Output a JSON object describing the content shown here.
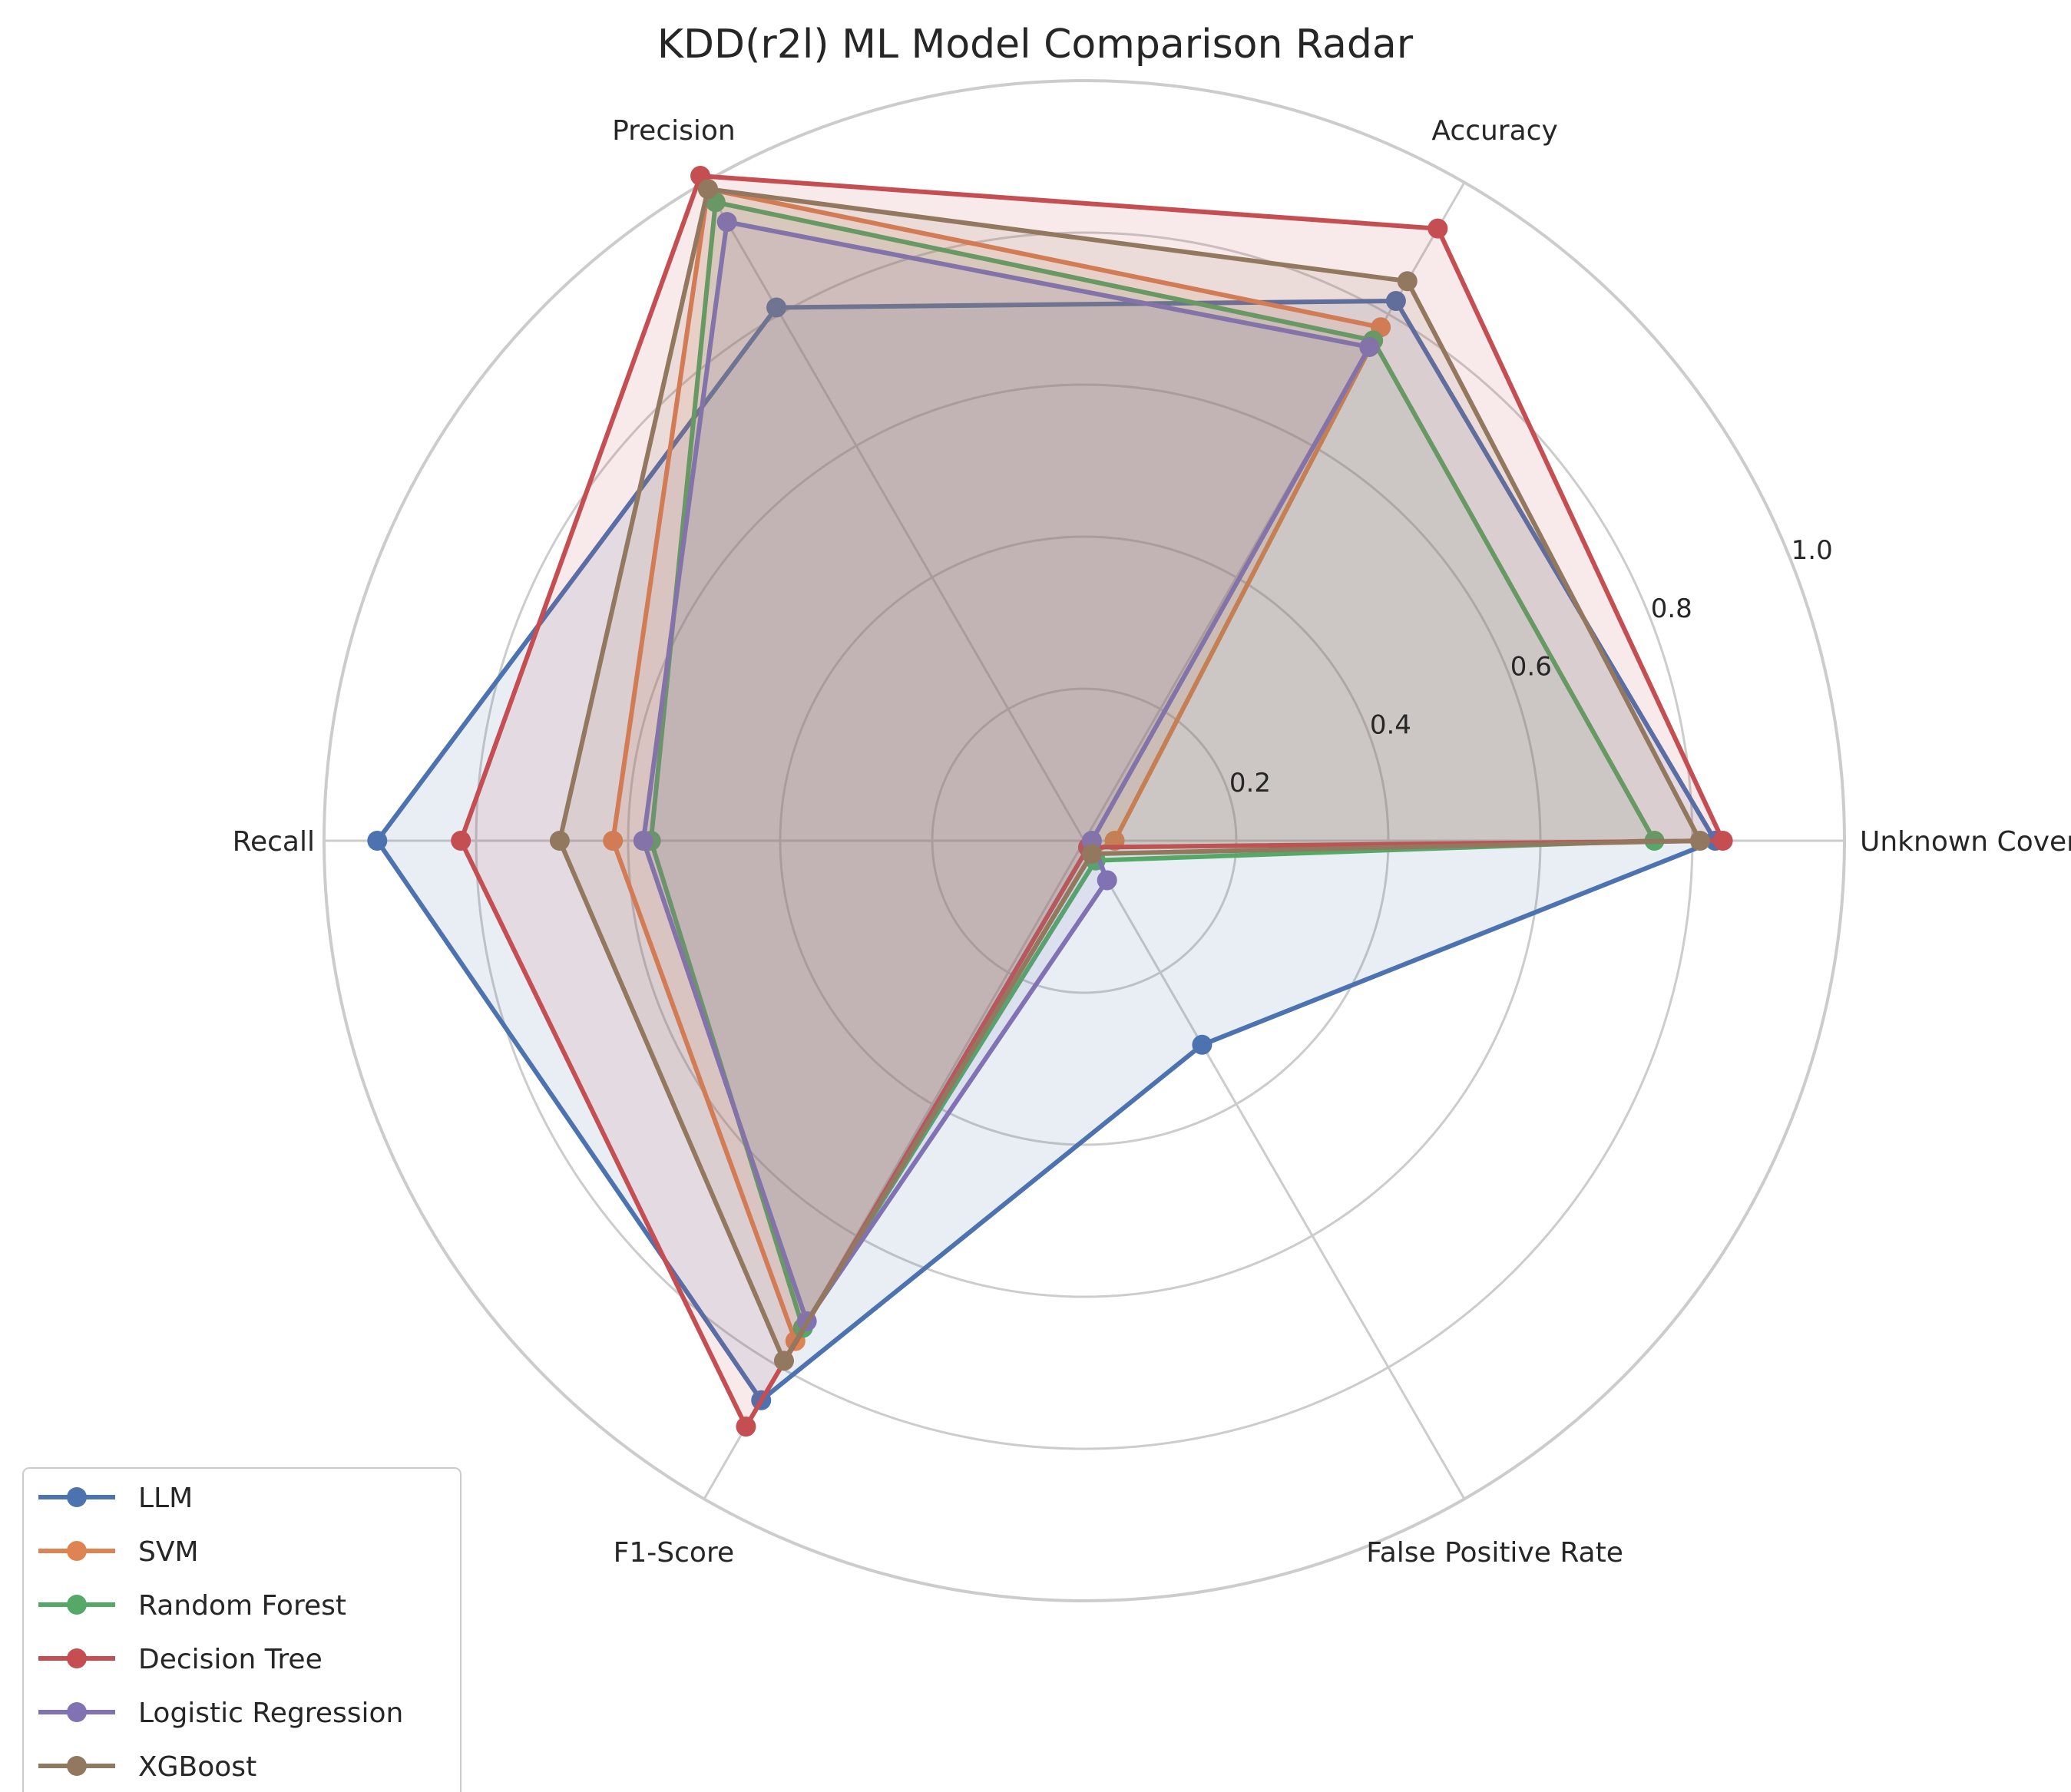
{
  "chart_data": {
    "type": "radar",
    "title": "KDD(r2l) ML Model Comparison Radar",
    "axes": [
      "Unknown Coverage",
      "Accuracy",
      "Precision",
      "Recall",
      "F1-Score",
      "False Positive Rate"
    ],
    "rlim": [
      0,
      1.0
    ],
    "r_ticks": [
      "0.2",
      "0.4",
      "0.6",
      "0.8",
      "1.0"
    ],
    "grid": true,
    "legend_position": "lower-left",
    "series": [
      {
        "name": "LLM",
        "color": "#4C72B0",
        "values": [
          0.83,
          0.82,
          0.81,
          0.93,
          0.85,
          0.31
        ]
      },
      {
        "name": "SVM",
        "color": "#DD8452",
        "values": [
          0.04,
          0.78,
          0.99,
          0.62,
          0.76,
          0.02
        ]
      },
      {
        "name": "Random Forest",
        "color": "#55A868",
        "values": [
          0.75,
          0.76,
          0.97,
          0.57,
          0.74,
          0.03
        ]
      },
      {
        "name": "Decision Tree",
        "color": "#C44E52",
        "values": [
          0.84,
          0.93,
          1.01,
          0.82,
          0.89,
          0.01
        ]
      },
      {
        "name": "Logistic Regression",
        "color": "#8172B3",
        "values": [
          0.01,
          0.75,
          0.94,
          0.58,
          0.73,
          0.06
        ]
      },
      {
        "name": "XGBoost",
        "color": "#937860",
        "values": [
          0.81,
          0.85,
          0.99,
          0.69,
          0.79,
          0.02
        ]
      }
    ]
  }
}
